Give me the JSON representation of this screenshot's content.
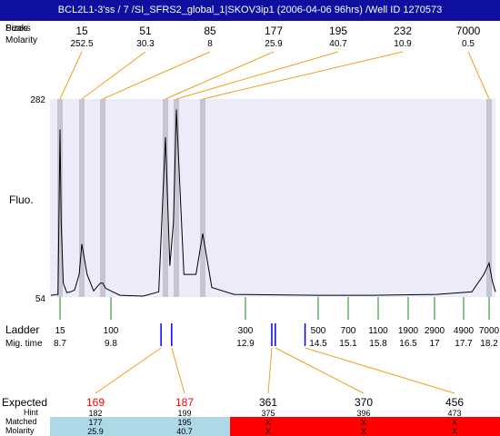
{
  "title": "BCL2L1-3'ss / 7 /SI_SFRS2_global_1|SKOV3ip1 (2006-04-06 96hrs) /Well ID 1270573",
  "peaks": {
    "header_label_top": "Peaks",
    "header_label_mid": "Sizes",
    "molarity_label": "Molarity",
    "items": [
      {
        "size": "15",
        "molarity": "252.5"
      },
      {
        "size": "51",
        "molarity": "30.3"
      },
      {
        "size": "85",
        "molarity": "8"
      },
      {
        "size": "177",
        "molarity": "25.9"
      },
      {
        "size": "195",
        "molarity": "40.7"
      },
      {
        "size": "232",
        "molarity": "10.9"
      },
      {
        "size": "7000",
        "molarity": "0.5"
      }
    ]
  },
  "colors": {
    "title_bg": "#0f0fa0",
    "plot_bg": "#ebebf9",
    "peak_band": "#c6c6d2",
    "connector": "#f0a020",
    "ladder_tick": "#1a8a1a",
    "sample_tick": "#0000ff",
    "expected_red": "#ff0000",
    "matched_bg": "#add8e6",
    "unmatched_bg": "#ff0000"
  },
  "chart_data": {
    "type": "line",
    "ylabel": "Fluo.",
    "ylim": [
      54,
      282
    ],
    "y_ticks": [
      "282",
      "54"
    ],
    "x_scale": "log (size, bp)",
    "xlim": [
      11,
      8200
    ],
    "peaks_bp": [
      15,
      51,
      85,
      177,
      195,
      232,
      7000
    ],
    "trace": [
      {
        "x": 11,
        "y": 56
      },
      {
        "x": 14,
        "y": 57
      },
      {
        "x": 15,
        "y": 247
      },
      {
        "x": 16,
        "y": 140
      },
      {
        "x": 18,
        "y": 70
      },
      {
        "x": 22,
        "y": 59
      },
      {
        "x": 27,
        "y": 60
      },
      {
        "x": 34,
        "y": 62
      },
      {
        "x": 44,
        "y": 80
      },
      {
        "x": 51,
        "y": 115
      },
      {
        "x": 58,
        "y": 80
      },
      {
        "x": 68,
        "y": 61
      },
      {
        "x": 80,
        "y": 70
      },
      {
        "x": 85,
        "y": 70
      },
      {
        "x": 90,
        "y": 64
      },
      {
        "x": 110,
        "y": 56
      },
      {
        "x": 140,
        "y": 55
      },
      {
        "x": 165,
        "y": 60
      },
      {
        "x": 177,
        "y": 238
      },
      {
        "x": 184,
        "y": 90
      },
      {
        "x": 190,
        "y": 140
      },
      {
        "x": 195,
        "y": 270
      },
      {
        "x": 205,
        "y": 80
      },
      {
        "x": 222,
        "y": 80
      },
      {
        "x": 232,
        "y": 127
      },
      {
        "x": 245,
        "y": 65
      },
      {
        "x": 280,
        "y": 57
      },
      {
        "x": 500,
        "y": 56
      },
      {
        "x": 1000,
        "y": 56
      },
      {
        "x": 3000,
        "y": 57
      },
      {
        "x": 5500,
        "y": 60
      },
      {
        "x": 6500,
        "y": 80
      },
      {
        "x": 7000,
        "y": 93
      },
      {
        "x": 7600,
        "y": 72
      },
      {
        "x": 8200,
        "y": 60
      }
    ]
  },
  "ladder": {
    "label": "Ladder",
    "mig_label": "Mig. time",
    "items": [
      {
        "size": "15",
        "time": "8.7"
      },
      {
        "size": "100",
        "time": "9.8"
      },
      {
        "size": "300",
        "time": "12.9"
      },
      {
        "size": "500",
        "time": "14.5"
      },
      {
        "size": "700",
        "time": "15.1"
      },
      {
        "size": "1100",
        "time": "15.8"
      },
      {
        "size": "1900",
        "time": "16.5"
      },
      {
        "size": "2900",
        "time": "17"
      },
      {
        "size": "4900",
        "time": "17.7"
      },
      {
        "size": "7000",
        "time": "18.2"
      }
    ]
  },
  "expected": {
    "label": "Expected",
    "hint_label": "Hint",
    "matched_label": "Matched",
    "molarity_label": "Molarity",
    "items": [
      {
        "value": "169",
        "hint": "182",
        "matched": "177",
        "molarity": "25.9",
        "found": true
      },
      {
        "value": "187",
        "hint": "199",
        "matched": "195",
        "molarity": "40.7",
        "found": true
      },
      {
        "value": "361",
        "hint": "375",
        "matched": "X",
        "molarity": "X",
        "found": false
      },
      {
        "value": "370",
        "hint": "396",
        "matched": "X",
        "molarity": "X",
        "found": false
      },
      {
        "value": "456",
        "hint": "473",
        "matched": "X",
        "molarity": "X",
        "found": false
      }
    ]
  }
}
